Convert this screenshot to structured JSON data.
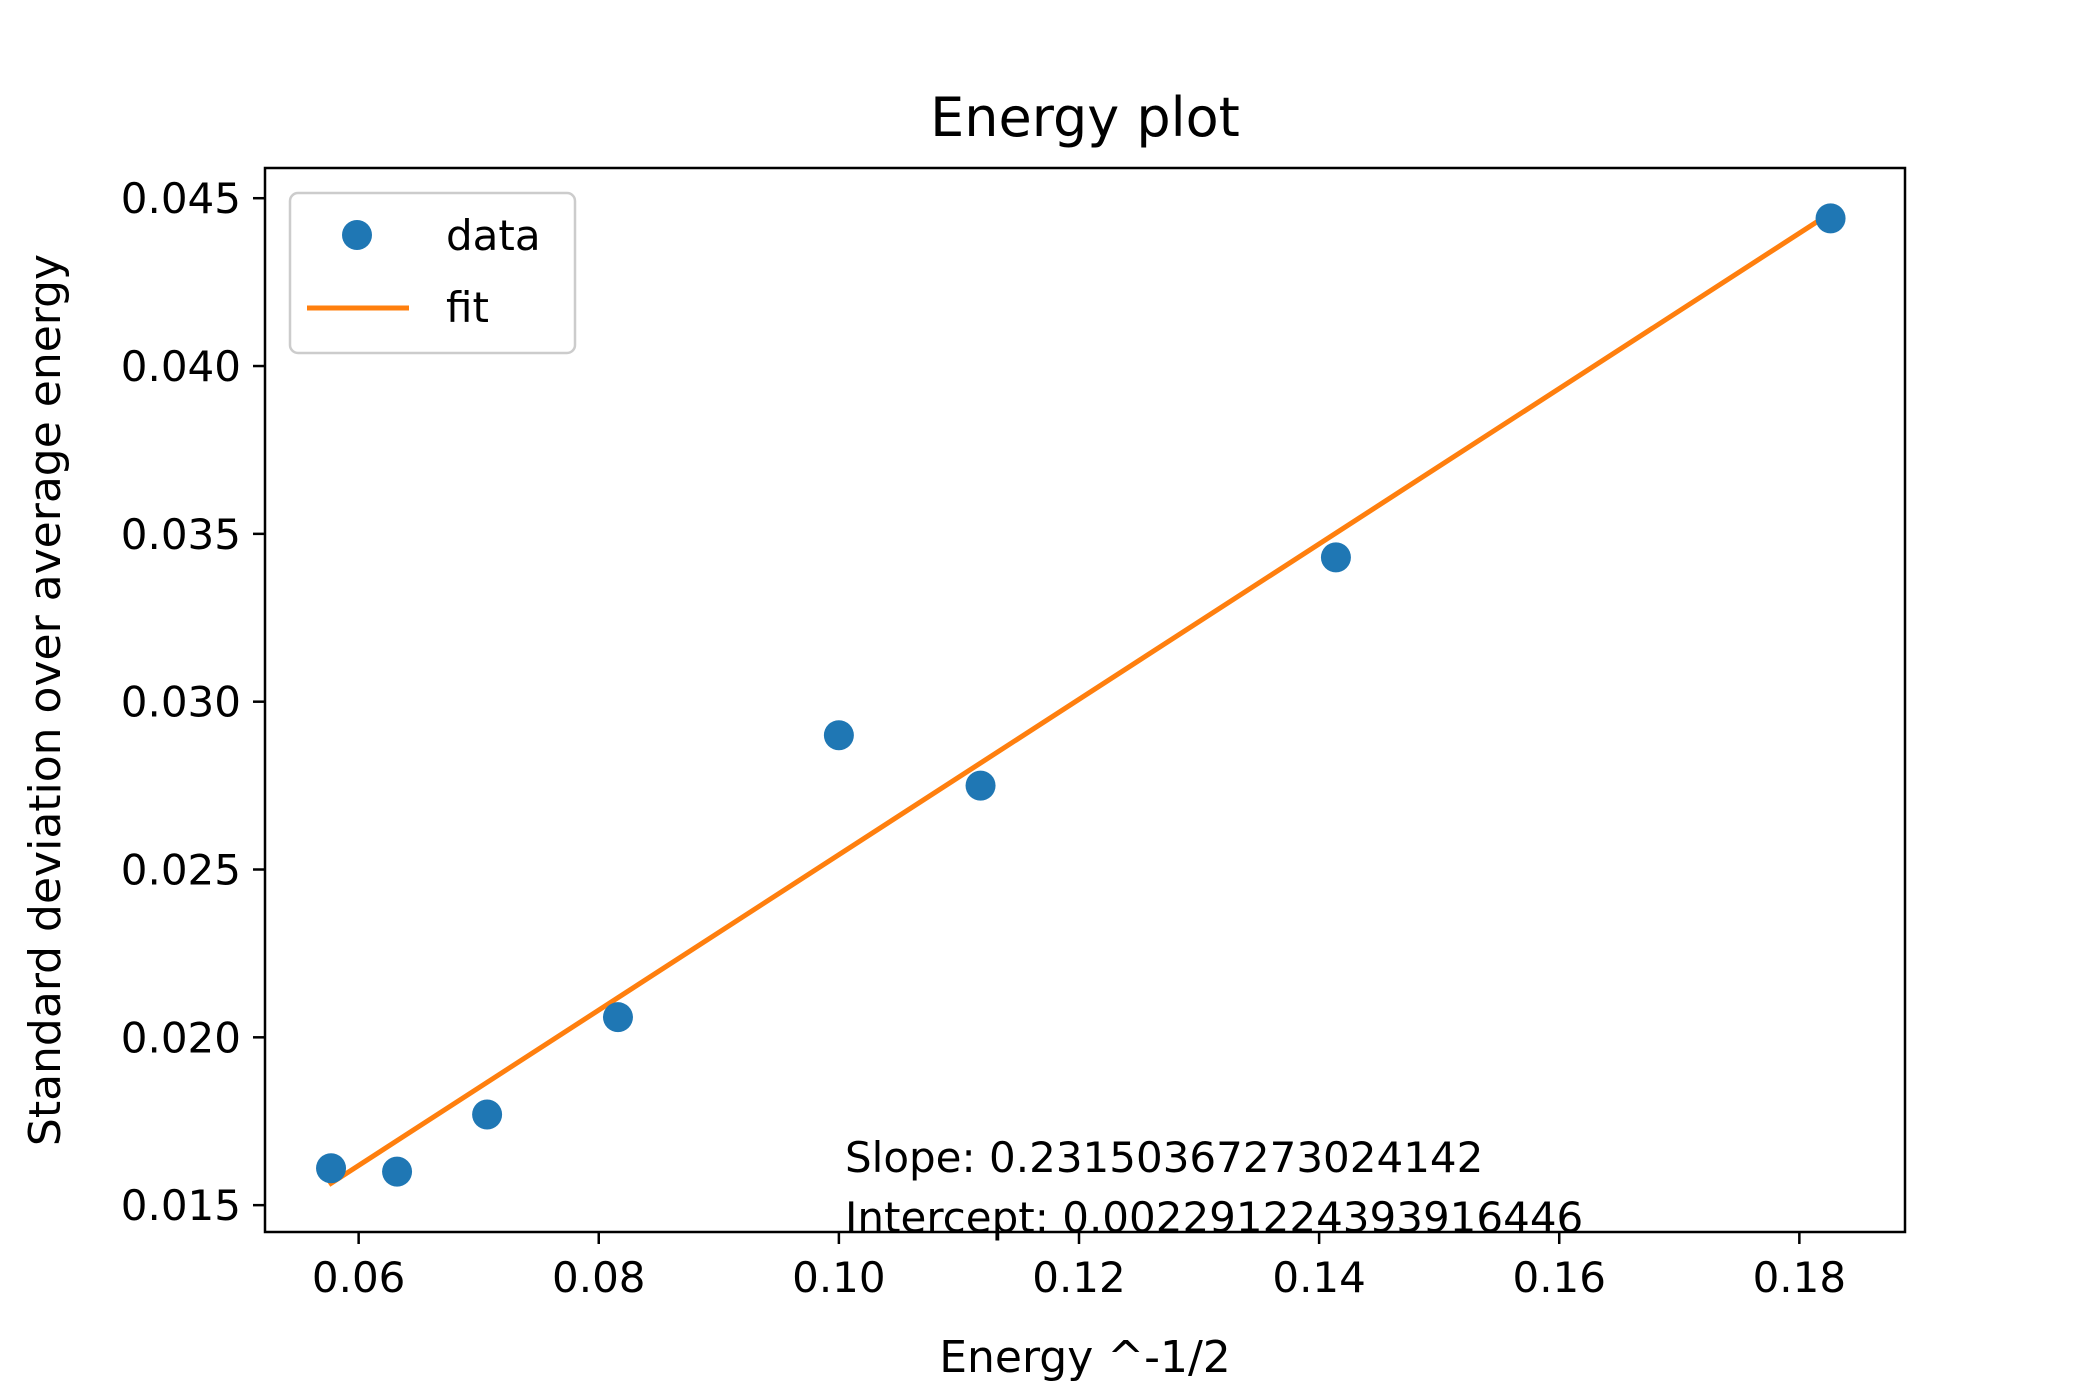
{
  "chart_data": {
    "type": "scatter",
    "title": "Energy plot",
    "xlabel": "Energy ^-1/2",
    "ylabel": "Standard deviation over average energy",
    "xlim": [
      0.0522,
      0.1888
    ],
    "ylim": [
      0.0142,
      0.0459
    ],
    "xticks": [
      0.06,
      0.08,
      0.1,
      0.12,
      0.14,
      0.16,
      0.18
    ],
    "xtick_labels": [
      "0.06",
      "0.08",
      "0.10",
      "0.12",
      "0.14",
      "0.16",
      "0.18"
    ],
    "yticks": [
      0.015,
      0.02,
      0.025,
      0.03,
      0.035,
      0.04,
      0.045
    ],
    "ytick_labels": [
      "0.015",
      "0.020",
      "0.025",
      "0.030",
      "0.035",
      "0.040",
      "0.045"
    ],
    "grid": false,
    "legend_position": "top-left",
    "series": [
      {
        "name": "data",
        "kind": "points",
        "color": "#1f77b4",
        "x": [
          0.0577,
          0.0632,
          0.0707,
          0.0816,
          0.1,
          0.1118,
          0.1414,
          0.1826
        ],
        "y": [
          0.0161,
          0.016,
          0.0177,
          0.0206,
          0.029,
          0.0275,
          0.0343,
          0.0444
        ]
      },
      {
        "name": "fit",
        "kind": "line",
        "color": "#ff7f0e",
        "x": [
          0.0577,
          0.1826
        ],
        "y": [
          0.01565,
          0.04456
        ]
      }
    ],
    "annotations": [
      "Slope: 0.23150367273024142",
      "Intercept: 0.002291224393916446"
    ]
  }
}
